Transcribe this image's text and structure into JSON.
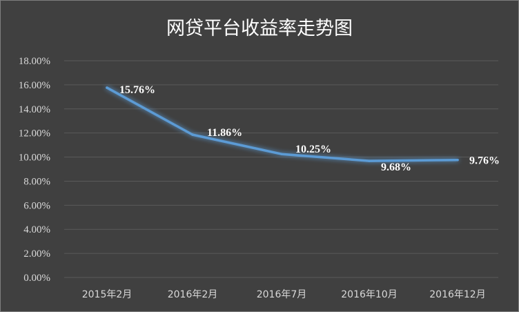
{
  "chart_data": {
    "type": "line",
    "title": "网贷平台收益率走势图",
    "categories": [
      "2015年2月",
      "2016年2月",
      "2016年7月",
      "2016年10月",
      "2016年12月"
    ],
    "values": [
      15.76,
      11.86,
      10.25,
      9.68,
      9.76
    ],
    "data_labels": [
      "15.76%",
      "11.86%",
      "10.25%",
      "9.68%",
      "9.76%"
    ],
    "y_tick_labels": [
      "0.00%",
      "2.00%",
      "4.00%",
      "6.00%",
      "8.00%",
      "10.00%",
      "12.00%",
      "14.00%",
      "16.00%",
      "18.00%"
    ],
    "ylim": [
      0,
      18
    ],
    "grid": true,
    "legend": "none",
    "colors": {
      "background": "#404040",
      "line": "#5b9bd5",
      "text": "#ffffff",
      "tick_text": "#d9d9d9",
      "grid": "#5a5a5a"
    }
  }
}
